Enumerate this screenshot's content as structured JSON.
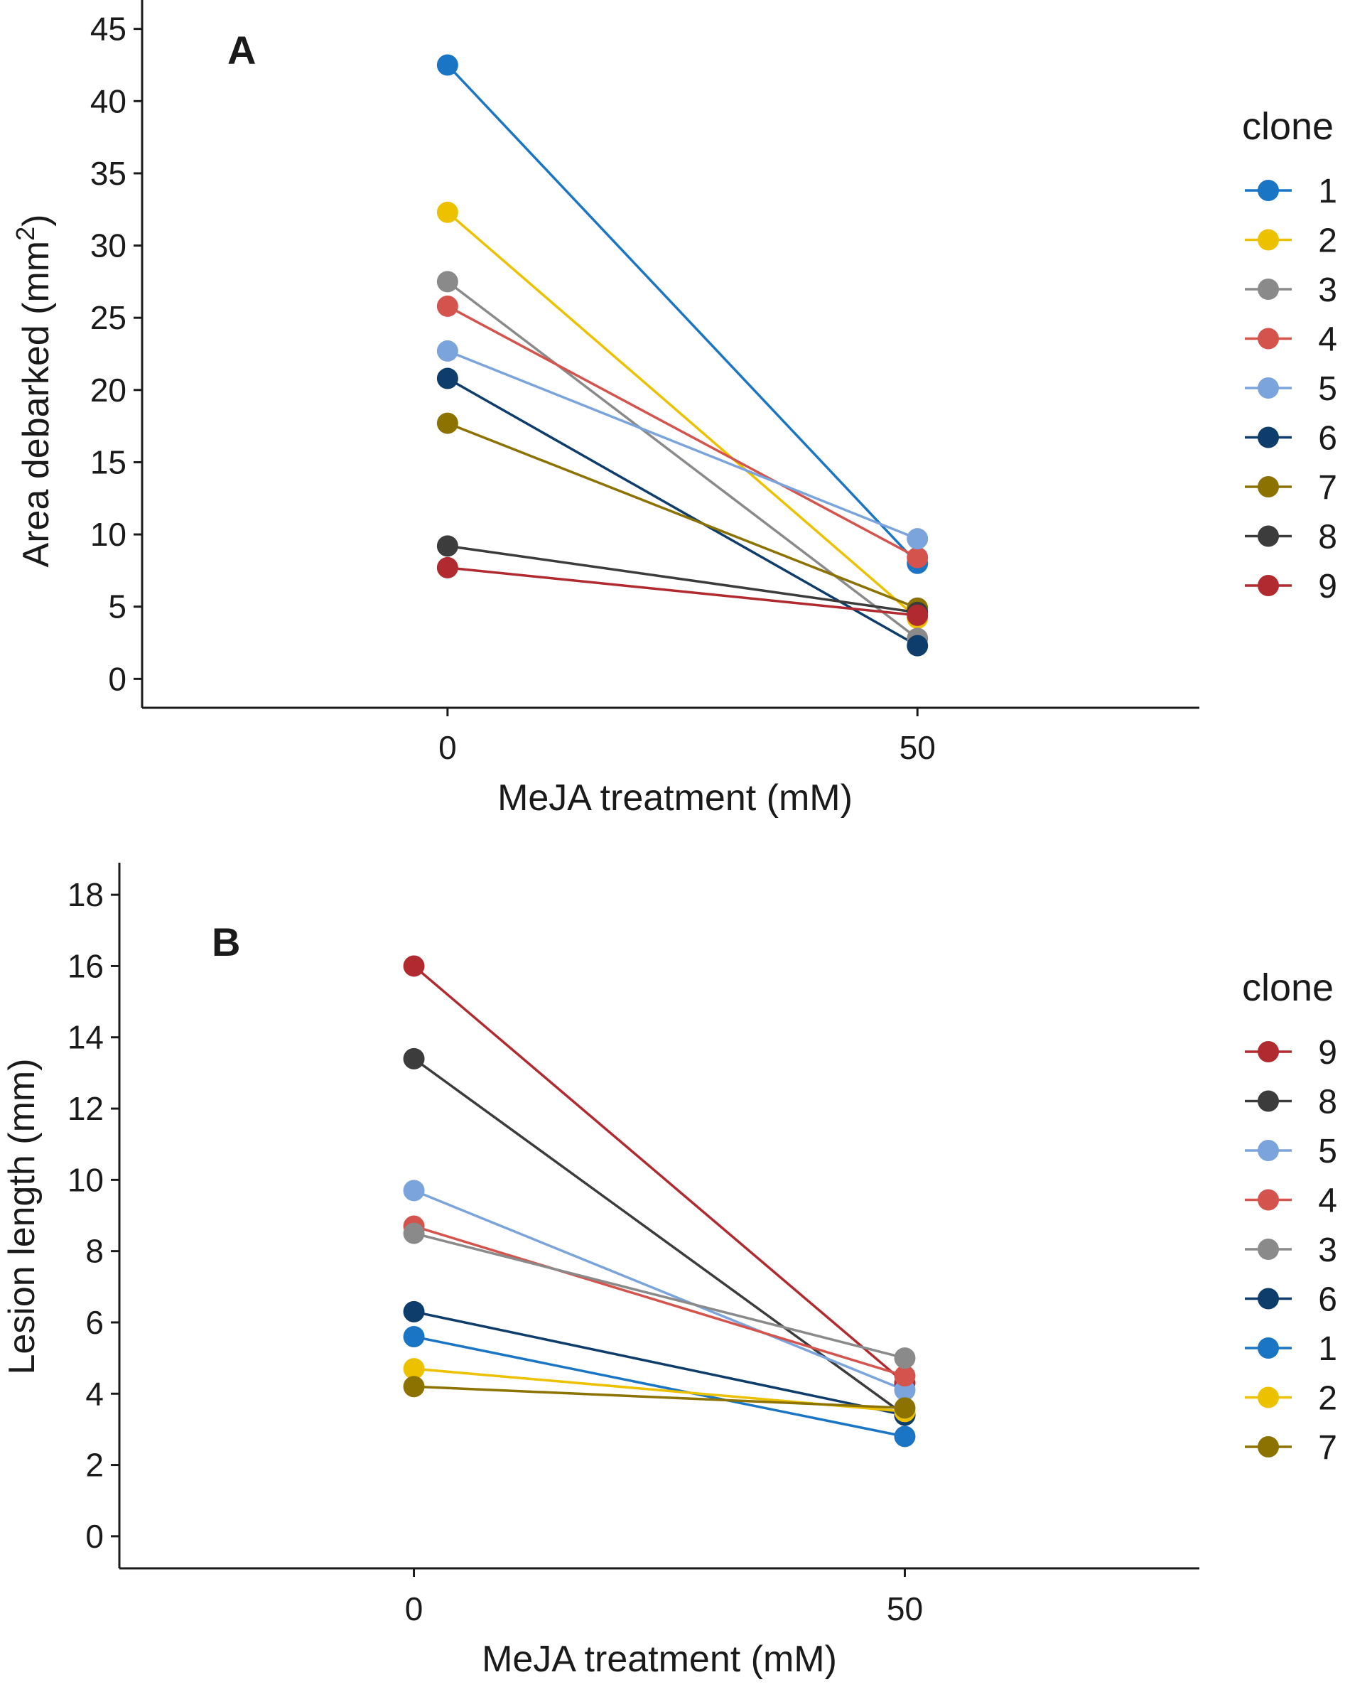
{
  "chart_data": [
    {
      "type": "line",
      "panel_label": "A",
      "title": "",
      "xlabel": "MeJA treatment (mM)",
      "ylabel": "Area debarked (mm",
      "ylabel_superscript": "2",
      "ylabel_suffix": ")",
      "x_categories": [
        "0",
        "50"
      ],
      "xlim": [
        -0.65,
        1.6
      ],
      "ylim": [
        -2,
        47
      ],
      "yticks": [
        0,
        5,
        10,
        15,
        20,
        25,
        30,
        35,
        40,
        45
      ],
      "grid": false,
      "legend_title": "clone",
      "legend_position": "right",
      "series": [
        {
          "name": "1",
          "color": "#1a75c4",
          "values": [
            42.5,
            8.0
          ]
        },
        {
          "name": "2",
          "color": "#ecc100",
          "values": [
            32.3,
            4.2
          ]
        },
        {
          "name": "3",
          "color": "#8a8a8a",
          "values": [
            27.5,
            2.8
          ]
        },
        {
          "name": "4",
          "color": "#d4544d",
          "values": [
            25.8,
            8.4
          ]
        },
        {
          "name": "5",
          "color": "#7ba4dc",
          "values": [
            22.7,
            9.7
          ]
        },
        {
          "name": "6",
          "color": "#0f3d6b",
          "values": [
            20.8,
            2.3
          ]
        },
        {
          "name": "7",
          "color": "#8c7200",
          "values": [
            17.7,
            4.9
          ]
        },
        {
          "name": "8",
          "color": "#3c3c3c",
          "values": [
            9.2,
            4.6
          ]
        },
        {
          "name": "9",
          "color": "#b02a2f",
          "values": [
            7.7,
            4.4
          ]
        }
      ]
    },
    {
      "type": "line",
      "panel_label": "B",
      "title": "",
      "xlabel": "MeJA treatment (mM)",
      "ylabel": "Lesion length (mm)",
      "x_categories": [
        "0",
        "50"
      ],
      "xlim": [
        -0.6,
        1.6
      ],
      "ylim": [
        -0.9,
        18.9
      ],
      "yticks": [
        0,
        2,
        4,
        6,
        8,
        10,
        12,
        14,
        16,
        18
      ],
      "grid": false,
      "legend_title": "clone",
      "legend_position": "right",
      "series": [
        {
          "name": "9",
          "color": "#b02a2f",
          "values": [
            16.0,
            4.3
          ]
        },
        {
          "name": "8",
          "color": "#3c3c3c",
          "values": [
            13.4,
            3.4
          ]
        },
        {
          "name": "5",
          "color": "#7ba4dc",
          "values": [
            9.7,
            4.1
          ]
        },
        {
          "name": "4",
          "color": "#d4544d",
          "values": [
            8.7,
            4.5
          ]
        },
        {
          "name": "3",
          "color": "#8a8a8a",
          "values": [
            8.5,
            5.0
          ]
        },
        {
          "name": "6",
          "color": "#0f3d6b",
          "values": [
            6.3,
            3.4
          ]
        },
        {
          "name": "1",
          "color": "#1a75c4",
          "values": [
            5.6,
            2.8
          ]
        },
        {
          "name": "2",
          "color": "#ecc100",
          "values": [
            4.7,
            3.5
          ]
        },
        {
          "name": "7",
          "color": "#8c7200",
          "values": [
            4.2,
            3.6
          ]
        }
      ]
    }
  ]
}
